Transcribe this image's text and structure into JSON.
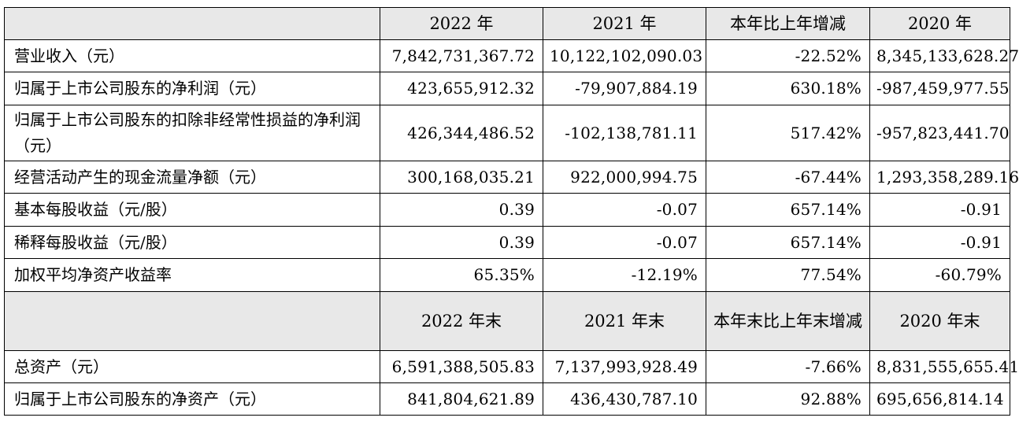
{
  "header": {
    "columns": [
      "2022 年",
      "2021 年",
      "本年比上年增减",
      "2020 年"
    ]
  },
  "rows": [
    {
      "label": "营业收入（元）",
      "values": [
        "7,842,731,367.72",
        "10,122,102,090.03",
        "-22.52%",
        "8,345,133,628.27"
      ]
    },
    {
      "label": "归属于上市公司股东的净利润（元）",
      "values": [
        "423,655,912.32",
        "-79,907,884.19",
        "630.18%",
        "-987,459,977.55"
      ]
    },
    {
      "label": "归属于上市公司股东的扣除非经常性损益的净利润（元）",
      "values": [
        "426,344,486.52",
        "-102,138,781.11",
        "517.42%",
        "-957,823,441.70"
      ]
    },
    {
      "label": "经营活动产生的现金流量净额（元）",
      "values": [
        "300,168,035.21",
        "922,000,994.75",
        "-67.44%",
        "1,293,358,289.16"
      ]
    },
    {
      "label": "基本每股收益（元/股）",
      "values": [
        "0.39",
        "-0.07",
        "657.14%",
        "-0.91"
      ]
    },
    {
      "label": "稀释每股收益（元/股）",
      "values": [
        "0.39",
        "-0.07",
        "657.14%",
        "-0.91"
      ]
    },
    {
      "label": "加权平均净资产收益率",
      "values": [
        "65.35%",
        "-12.19%",
        "77.54%",
        "-60.79%"
      ]
    }
  ],
  "sub_header": {
    "columns": [
      "2022 年末",
      "2021 年末",
      "本年末比上年末增减",
      "2020 年末"
    ]
  },
  "rows_end": [
    {
      "label": "总资产（元）",
      "values": [
        "6,591,388,505.83",
        "7,137,993,928.49",
        "-7.66%",
        "8,831,555,655.41"
      ]
    },
    {
      "label": "归属于上市公司股东的净资产（元）",
      "values": [
        "841,804,621.89",
        "436,430,787.10",
        "92.88%",
        "695,656,814.14"
      ]
    }
  ]
}
